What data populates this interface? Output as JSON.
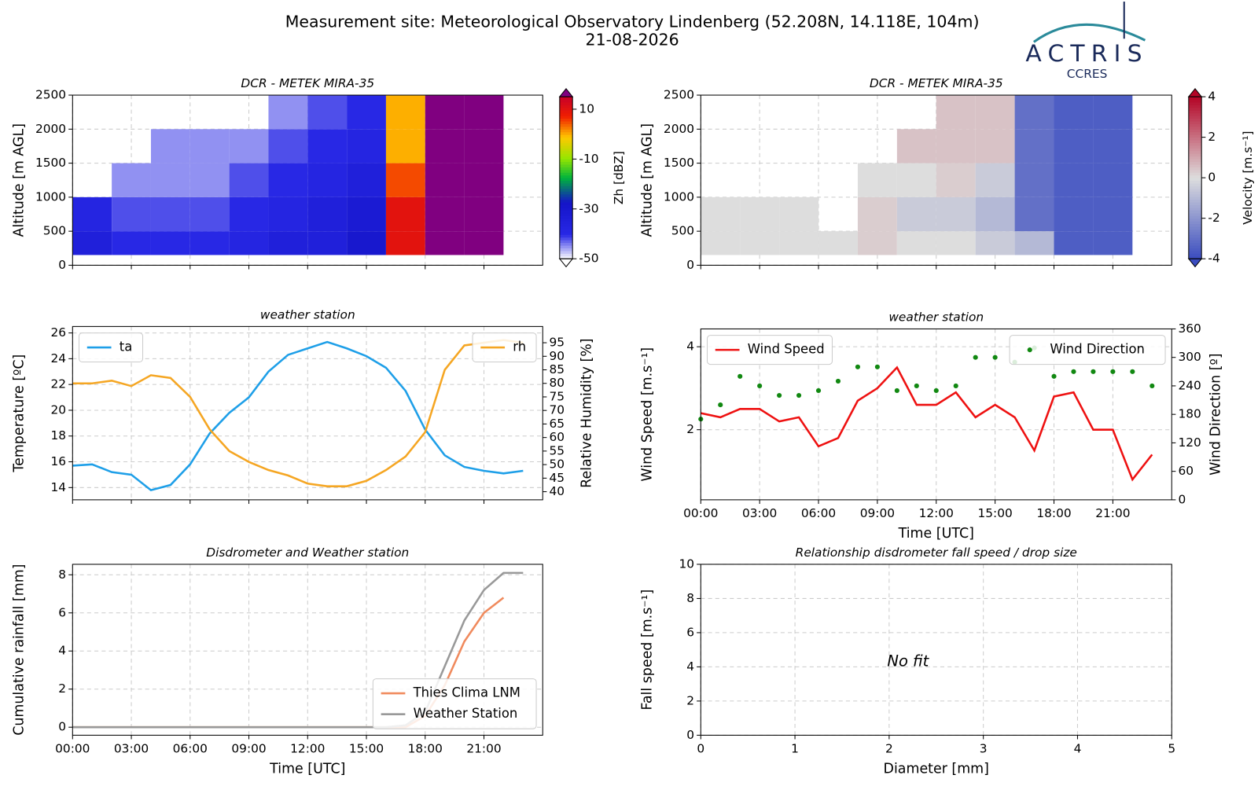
{
  "header": {
    "title": "Measurement site: Meteorological Observatory Lindenberg (52.208N, 14.118E, 104m)",
    "date": "21-08-2026",
    "logo": "ACTRIS",
    "logo_sub": "CCRES"
  },
  "chart_data": [
    {
      "type": "heatmap",
      "title": "DCR - METEK MIRA-35",
      "ylabel": "Altitude [m AGL]",
      "colorbar_label": "Zh [dBZ]",
      "colormap": "jet",
      "xlim": [
        0,
        24
      ],
      "xticks": [
        0,
        3,
        6,
        9,
        12,
        15,
        18,
        21
      ],
      "xtick_labels": false,
      "ylim": [
        0,
        2500
      ],
      "yticks": [
        0,
        500,
        1000,
        1500,
        2000,
        2500
      ],
      "grid": true,
      "zlim": [
        -50,
        15
      ],
      "zticks": [
        -50,
        -30,
        -10,
        10
      ],
      "x_bins": [
        0,
        2,
        4,
        6,
        8,
        10,
        12,
        14,
        16,
        18,
        20,
        22,
        24
      ],
      "y_bins": [
        150,
        500,
        1000,
        1500,
        2000,
        2500
      ],
      "z": [
        [
          -35,
          -38,
          null,
          null,
          null
        ],
        [
          -40,
          -42,
          -45,
          null,
          null
        ],
        [
          -40,
          -42,
          -45,
          -45,
          null
        ],
        [
          -40,
          -42,
          -45,
          -45,
          null
        ],
        [
          -38,
          -40,
          -42,
          -45,
          null
        ],
        [
          -35,
          -38,
          -40,
          -42,
          -45
        ],
        [
          -35,
          -35,
          -38,
          -40,
          -42
        ],
        [
          -30,
          -32,
          -35,
          -38,
          -40
        ],
        [
          10,
          10,
          5,
          0,
          0
        ],
        [
          20,
          20,
          20,
          20,
          20
        ],
        [
          20,
          20,
          20,
          20,
          20
        ],
        [
          null,
          null,
          null,
          null,
          null
        ]
      ]
    },
    {
      "type": "heatmap",
      "title": "DCR - METEK MIRA-35",
      "ylabel": "Altitude [m AGL]",
      "colorbar_label": "Velocity [m.s⁻¹]",
      "colormap": "coolwarm",
      "xlim": [
        0,
        24
      ],
      "xticks": [
        0,
        3,
        6,
        9,
        12,
        15,
        18,
        21
      ],
      "xtick_labels": false,
      "ylim": [
        0,
        2500
      ],
      "yticks": [
        0,
        500,
        1000,
        1500,
        2000,
        2500
      ],
      "grid": true,
      "zlim": [
        -4,
        4
      ],
      "zticks": [
        -4,
        -2,
        0,
        2,
        4
      ],
      "x_bins": [
        0,
        2,
        4,
        6,
        8,
        10,
        12,
        14,
        16,
        18,
        20,
        22,
        24
      ],
      "y_bins": [
        150,
        500,
        1000,
        1500,
        2000,
        2500
      ],
      "z": [
        [
          0,
          0,
          null,
          null,
          null
        ],
        [
          0,
          0,
          null,
          null,
          null
        ],
        [
          0,
          0,
          null,
          null,
          null
        ],
        [
          0,
          null,
          null,
          null,
          null
        ],
        [
          0.3,
          0.3,
          0,
          null,
          null
        ],
        [
          0,
          -0.5,
          0,
          0.5,
          null
        ],
        [
          0,
          -0.5,
          0.3,
          0.5,
          0.5
        ],
        [
          -0.5,
          -1,
          -0.5,
          0.5,
          0.5
        ],
        [
          -1,
          -3,
          -3,
          -3,
          -3
        ],
        [
          -3.5,
          -3.5,
          -3.5,
          -3.5,
          -3.5
        ],
        [
          -3.5,
          -3.5,
          -3.5,
          -3.5,
          -3.5
        ],
        [
          null,
          null,
          null,
          null,
          null
        ]
      ]
    },
    {
      "type": "line",
      "title": "weather station",
      "ylabel": "Temperature [ºC]",
      "y2label": "Relative Humidity [%]",
      "xlim": [
        0,
        24
      ],
      "xticks": [
        0,
        3,
        6,
        9,
        12,
        15,
        18,
        21
      ],
      "xtick_labels": false,
      "ylim": [
        13.05,
        26.5
      ],
      "yticks": [
        14,
        16,
        18,
        20,
        22,
        24,
        26
      ],
      "y2lim": [
        37,
        101
      ],
      "y2ticks": [
        40,
        45,
        50,
        55,
        60,
        65,
        70,
        75,
        80,
        85,
        90,
        95
      ],
      "grid": true,
      "legend": "upper left",
      "legend_y2": "upper right",
      "series": [
        {
          "name": "ta",
          "color": "#1e9fe8",
          "x": [
            0,
            1,
            2,
            3,
            4,
            5,
            6,
            7,
            8,
            9,
            10,
            11,
            12,
            13,
            14,
            15,
            16,
            17,
            18,
            19,
            20,
            21,
            22,
            23
          ],
          "values": [
            15.7,
            15.8,
            15.2,
            15.0,
            13.8,
            14.2,
            15.8,
            18.2,
            19.8,
            21.0,
            23.0,
            24.3,
            24.8,
            25.3,
            24.8,
            24.2,
            23.3,
            21.5,
            18.5,
            16.5,
            15.6,
            15.3,
            15.1,
            15.3
          ]
        },
        {
          "name": "rh",
          "color": "#f5a623",
          "axis": "y2",
          "x": [
            0,
            1,
            2,
            3,
            4,
            5,
            6,
            7,
            8,
            9,
            10,
            11,
            12,
            13,
            14,
            15,
            16,
            17,
            18,
            19,
            20,
            21,
            22,
            23
          ],
          "values": [
            80,
            80,
            81,
            79,
            83,
            82,
            75,
            63,
            55,
            51,
            48,
            46,
            43,
            42,
            42,
            44,
            48,
            53,
            62,
            85,
            94,
            95,
            96,
            95
          ]
        }
      ]
    },
    {
      "type": "line",
      "title": "weather station",
      "xlabel": "Time [UTC]",
      "ylabel": "Wind Speed [m.s⁻¹]",
      "y2label": "Wind Direction [º]",
      "xlim": [
        0,
        24
      ],
      "xticks": [
        {
          "value": 0,
          "label": "00:00"
        },
        {
          "value": 3,
          "label": "03:00"
        },
        {
          "value": 6,
          "label": "06:00"
        },
        {
          "value": 9,
          "label": "09:00"
        },
        {
          "value": 12,
          "label": "12:00"
        },
        {
          "value": 15,
          "label": "15:00"
        },
        {
          "value": 18,
          "label": "18:00"
        },
        {
          "value": 21,
          "label": "21:00"
        }
      ],
      "ylim": [
        0.31,
        4.43
      ],
      "yticks": [
        2,
        4
      ],
      "y2lim": [
        0,
        360
      ],
      "y2ticks": [
        0,
        60,
        120,
        180,
        240,
        300,
        360
      ],
      "grid": true,
      "legend": "upper left",
      "legend_y2": "upper right",
      "series": [
        {
          "name": "Wind Speed",
          "color": "#ee1111",
          "x": [
            0,
            1,
            2,
            3,
            4,
            5,
            6,
            7,
            8,
            9,
            10,
            11,
            12,
            13,
            14,
            15,
            16,
            17,
            18,
            19,
            20,
            21,
            22,
            23
          ],
          "values": [
            2.4,
            2.3,
            2.5,
            2.5,
            2.2,
            2.3,
            1.6,
            1.8,
            2.7,
            3.0,
            3.5,
            2.6,
            2.6,
            2.9,
            2.3,
            2.6,
            2.3,
            1.5,
            2.8,
            2.9,
            2.0,
            2.0,
            0.8,
            1.4
          ]
        },
        {
          "name": "Wind Direction",
          "color": "#118811",
          "axis": "y2",
          "marker": "dot",
          "x": [
            0,
            1,
            2,
            3,
            4,
            5,
            6,
            7,
            8,
            9,
            10,
            11,
            12,
            13,
            14,
            15,
            16,
            17,
            18,
            19,
            20,
            21,
            22,
            23
          ],
          "values": [
            170,
            200,
            260,
            240,
            220,
            220,
            230,
            250,
            280,
            280,
            230,
            240,
            230,
            240,
            300,
            300,
            290,
            320,
            260,
            270,
            270,
            270,
            270,
            240
          ]
        }
      ]
    },
    {
      "type": "line",
      "title": "Disdrometer and Weather station",
      "xlabel": "Time [UTC]",
      "ylabel": "Cumulative rainfall [mm]",
      "xlim": [
        0,
        24
      ],
      "xticks": [
        {
          "value": 0,
          "label": "00:00"
        },
        {
          "value": 3,
          "label": "03:00"
        },
        {
          "value": 6,
          "label": "06:00"
        },
        {
          "value": 9,
          "label": "09:00"
        },
        {
          "value": 12,
          "label": "12:00"
        },
        {
          "value": 15,
          "label": "15:00"
        },
        {
          "value": 18,
          "label": "18:00"
        },
        {
          "value": 21,
          "label": "21:00"
        }
      ],
      "ylim": [
        -0.42,
        8.55
      ],
      "yticks": [
        0,
        2,
        4,
        6,
        8
      ],
      "grid": true,
      "legend": "lower right",
      "series": [
        {
          "name": "Thies Clima LNM",
          "color": "#f08a5d",
          "x": [
            0,
            3,
            6,
            9,
            12,
            15,
            16,
            17,
            18,
            19,
            20,
            21,
            22
          ],
          "values": [
            0,
            0,
            0,
            0,
            0,
            0,
            0,
            0,
            0.6,
            2.2,
            4.5,
            6.0,
            6.8
          ]
        },
        {
          "name": "Weather Station",
          "color": "#999999",
          "x": [
            0,
            3,
            6,
            9,
            12,
            15,
            16,
            17,
            18,
            19,
            20,
            21,
            22,
            23
          ],
          "values": [
            0,
            0,
            0,
            0,
            0,
            0,
            0,
            0.1,
            0.8,
            3.2,
            5.6,
            7.2,
            8.1,
            8.1
          ]
        }
      ]
    },
    {
      "type": "empty",
      "title": "Relationship disdrometer fall speed / drop size",
      "xlabel": "Diameter [mm]",
      "ylabel": "Fall speed [m.s⁻¹]",
      "annotation": "No fit",
      "xlim": [
        0,
        5
      ],
      "xticks": [
        0,
        1,
        2,
        3,
        4,
        5
      ],
      "ylim": [
        0,
        10
      ],
      "yticks": [
        0,
        2,
        4,
        6,
        8,
        10
      ],
      "grid": true
    }
  ]
}
